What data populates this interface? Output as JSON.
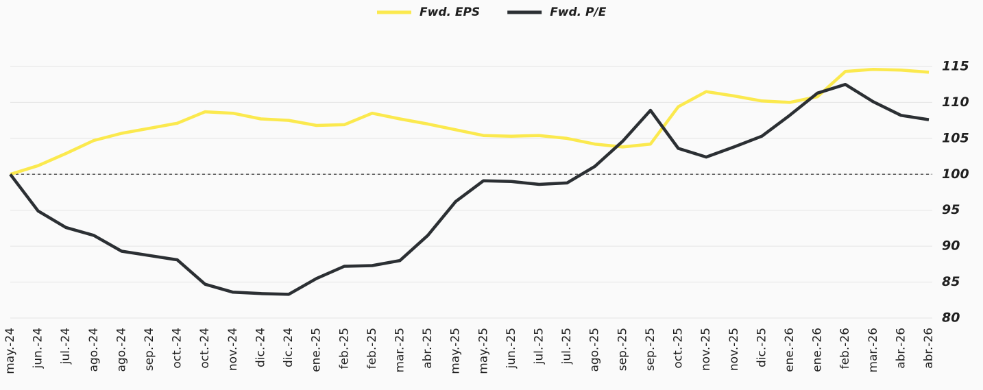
{
  "chart_data": {
    "type": "line",
    "categories": [
      "may.-24",
      "jun.-24",
      "jul.-24",
      "ago.-24",
      "ago.-24",
      "sep.-24",
      "oct.-24",
      "oct.-24",
      "nov.-24",
      "dic.-24",
      "dic.-24",
      "ene.-25",
      "feb.-25",
      "feb.-25",
      "mar.-25",
      "abr.-25",
      "may.-25",
      "may.-25",
      "jun.-25",
      "jul.-25",
      "jul.-25",
      "ago.-25",
      "sep.-25",
      "sep.-25",
      "oct.-25",
      "nov.-25",
      "nov.-25",
      "dic.-25",
      "ene.-26",
      "ene.-26",
      "feb.-26",
      "mar.-26",
      "abr.-26",
      "abr.-26"
    ],
    "series": [
      {
        "name": "Fwd. EPS",
        "color": "#fbe94e",
        "values": [
          100,
          101.2,
          102.9,
          104.7,
          105.7,
          106.4,
          107.1,
          108.7,
          108.5,
          107.7,
          107.5,
          106.8,
          106.9,
          108.5,
          107.7,
          107.0,
          106.2,
          105.4,
          105.3,
          105.4,
          105.0,
          104.2,
          103.8,
          104.2,
          109.4,
          111.5,
          110.9,
          110.2,
          110.0,
          110.8,
          114.3,
          114.6,
          114.5,
          114.2
        ]
      },
      {
        "name": "Fwd. P/E",
        "color": "#2b2f33",
        "values": [
          100,
          94.9,
          92.6,
          91.5,
          89.3,
          88.7,
          88.1,
          84.7,
          83.6,
          83.4,
          83.3,
          85.5,
          87.2,
          87.3,
          88.0,
          91.5,
          96.2,
          99.1,
          99.0,
          98.6,
          98.8,
          101.1,
          104.6,
          108.9,
          103.6,
          102.4,
          103.8,
          105.3,
          108.2,
          111.3,
          112.5,
          110.1,
          108.2,
          107.6
        ]
      }
    ],
    "ylim": [
      80,
      115
    ],
    "yticks": [
      80,
      85,
      90,
      95,
      100,
      105,
      110,
      115
    ],
    "reference_line": 100,
    "grid": true,
    "legend": "top"
  }
}
